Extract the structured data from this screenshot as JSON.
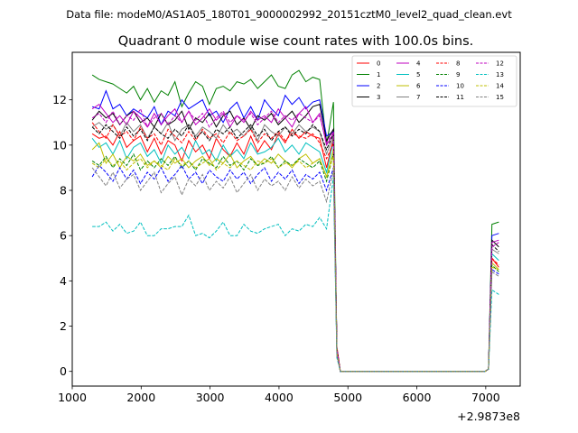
{
  "suptitle": "Data file: modeM0/AS1A05_180T01_9000002992_20151cztM0_level2_quad_clean.evt",
  "chart_data": {
    "type": "line",
    "title": "Quadrant 0 module wise count rates with 100.0s bins.",
    "xlabel": "",
    "ylabel": "",
    "x_offset_label": "+2.9873e8",
    "xlim": [
      1000,
      7500
    ],
    "ylim": [
      -0.65,
      14.1
    ],
    "xticks": [
      1000,
      2000,
      3000,
      4000,
      5000,
      6000,
      7000
    ],
    "yticks": [
      0,
      2,
      4,
      6,
      8,
      10,
      12
    ],
    "grid": false,
    "legend_position": "top-right",
    "legend_columns": 4,
    "x": [
      1290,
      1390,
      1490,
      1590,
      1690,
      1790,
      1890,
      1990,
      2090,
      2190,
      2290,
      2390,
      2490,
      2590,
      2690,
      2790,
      2890,
      2990,
      3090,
      3190,
      3290,
      3390,
      3490,
      3590,
      3690,
      3790,
      3890,
      3990,
      4090,
      4190,
      4290,
      4390,
      4490,
      4590,
      4690,
      4790,
      4840,
      4890,
      4990,
      5090,
      5190,
      5290,
      5390,
      5490,
      5590,
      5690,
      5790,
      5890,
      5990,
      6090,
      6190,
      6290,
      6390,
      6490,
      6590,
      6690,
      6790,
      6890,
      6990,
      7040,
      7090,
      7190
    ],
    "series": [
      {
        "name": "0",
        "color": "#ff0000",
        "dash": "solid",
        "values": [
          10.5,
          10.3,
          10.4,
          10.0,
          10.6,
          9.9,
          10.2,
          10.4,
          9.7,
          10.3,
          9.6,
          10.2,
          10.0,
          9.3,
          10.2,
          9.7,
          10.0,
          9.4,
          10.3,
          9.8,
          9.5,
          10.1,
          9.6,
          10.4,
          9.7,
          10.2,
          9.8,
          10.5,
          10.1,
          10.7,
          10.3,
          10.6,
          10.4,
          10.3,
          9.0,
          10.3,
          1.1,
          0.0,
          0.0,
          0.0,
          0.0,
          0.0,
          0.0,
          0.0,
          0.0,
          0.0,
          0.0,
          0.0,
          0.0,
          0.0,
          0.0,
          0.0,
          0.0,
          0.0,
          0.0,
          0.0,
          0.0,
          0.0,
          0.0,
          0.1,
          5.0,
          4.6
        ]
      },
      {
        "name": "1",
        "color": "#008000",
        "dash": "solid",
        "values": [
          13.1,
          12.9,
          12.8,
          12.7,
          12.5,
          12.3,
          12.6,
          12.0,
          12.5,
          11.9,
          12.4,
          12.2,
          12.8,
          11.7,
          12.3,
          12.8,
          12.6,
          11.8,
          12.5,
          12.6,
          12.4,
          12.8,
          12.7,
          12.9,
          12.5,
          12.8,
          13.1,
          12.6,
          12.5,
          13.1,
          13.3,
          12.8,
          13.0,
          12.9,
          10.0,
          11.9,
          1.0,
          0.0,
          0.0,
          0.0,
          0.0,
          0.0,
          0.0,
          0.0,
          0.0,
          0.0,
          0.0,
          0.0,
          0.0,
          0.0,
          0.0,
          0.0,
          0.0,
          0.0,
          0.0,
          0.0,
          0.0,
          0.0,
          0.0,
          0.1,
          6.5,
          6.6
        ]
      },
      {
        "name": "2",
        "color": "#0000ff",
        "dash": "solid",
        "values": [
          11.7,
          11.6,
          12.4,
          11.6,
          11.8,
          11.3,
          11.6,
          11.4,
          11.2,
          11.7,
          10.9,
          11.5,
          11.3,
          12.0,
          11.6,
          11.8,
          12.0,
          11.3,
          11.5,
          11.0,
          11.6,
          11.9,
          11.2,
          11.7,
          11.1,
          12.0,
          11.6,
          11.3,
          12.2,
          11.8,
          12.1,
          11.6,
          11.9,
          12.0,
          10.4,
          10.6,
          0.9,
          0.0,
          0.0,
          0.0,
          0.0,
          0.0,
          0.0,
          0.0,
          0.0,
          0.0,
          0.0,
          0.0,
          0.0,
          0.0,
          0.0,
          0.0,
          0.0,
          0.0,
          0.0,
          0.0,
          0.0,
          0.0,
          0.0,
          0.1,
          6.0,
          6.1
        ]
      },
      {
        "name": "3",
        "color": "#000000",
        "dash": "solid",
        "values": [
          11.1,
          11.5,
          11.2,
          11.4,
          10.9,
          11.3,
          11.5,
          11.0,
          11.2,
          10.8,
          11.4,
          10.9,
          11.1,
          11.5,
          10.7,
          11.2,
          11.0,
          11.4,
          10.8,
          11.3,
          11.5,
          10.9,
          11.2,
          10.7,
          11.3,
          11.1,
          11.4,
          10.9,
          11.2,
          11.5,
          11.0,
          11.3,
          11.7,
          11.8,
          10.2,
          10.7,
          1.0,
          0.0,
          0.0,
          0.0,
          0.0,
          0.0,
          0.0,
          0.0,
          0.0,
          0.0,
          0.0,
          0.0,
          0.0,
          0.0,
          0.0,
          0.0,
          0.0,
          0.0,
          0.0,
          0.0,
          0.0,
          0.0,
          0.0,
          0.1,
          5.8,
          5.5
        ]
      },
      {
        "name": "4",
        "color": "#bf00bf",
        "dash": "solid",
        "values": [
          11.6,
          11.8,
          11.4,
          11.0,
          11.3,
          10.9,
          11.5,
          11.2,
          10.8,
          11.4,
          10.9,
          11.3,
          11.6,
          11.0,
          11.5,
          10.9,
          11.2,
          11.6,
          11.1,
          11.4,
          10.8,
          11.3,
          11.0,
          11.5,
          11.1,
          11.3,
          11.0,
          11.6,
          11.2,
          10.8,
          11.4,
          11.7,
          11.0,
          11.4,
          10.0,
          10.5,
          1.0,
          0.0,
          0.0,
          0.0,
          0.0,
          0.0,
          0.0,
          0.0,
          0.0,
          0.0,
          0.0,
          0.0,
          0.0,
          0.0,
          0.0,
          0.0,
          0.0,
          0.0,
          0.0,
          0.0,
          0.0,
          0.0,
          0.0,
          0.1,
          5.7,
          5.8
        ]
      },
      {
        "name": "5",
        "color": "#00bfbf",
        "dash": "solid",
        "values": [
          10.3,
          9.9,
          10.1,
          9.6,
          10.2,
          9.4,
          9.9,
          10.1,
          9.5,
          9.8,
          9.2,
          10.0,
          9.6,
          9.9,
          9.4,
          10.2,
          9.6,
          9.8,
          9.3,
          10.0,
          9.5,
          9.8,
          9.4,
          10.1,
          9.6,
          9.7,
          9.9,
          10.3,
          9.7,
          10.0,
          9.6,
          10.1,
          9.9,
          9.7,
          8.8,
          10.2,
          0.9,
          0.0,
          0.0,
          0.0,
          0.0,
          0.0,
          0.0,
          0.0,
          0.0,
          0.0,
          0.0,
          0.0,
          0.0,
          0.0,
          0.0,
          0.0,
          0.0,
          0.0,
          0.0,
          0.0,
          0.0,
          0.0,
          0.0,
          0.1,
          5.2,
          4.9
        ]
      },
      {
        "name": "6",
        "color": "#bfbf00",
        "dash": "solid",
        "values": [
          9.8,
          10.1,
          9.2,
          9.6,
          9.0,
          9.5,
          9.3,
          9.6,
          9.1,
          9.3,
          9.0,
          9.5,
          9.2,
          9.4,
          9.0,
          9.3,
          9.5,
          9.1,
          9.4,
          9.2,
          9.6,
          9.0,
          9.3,
          9.5,
          9.1,
          9.4,
          9.2,
          9.6,
          9.3,
          9.0,
          9.4,
          9.6,
          9.2,
          9.4,
          8.6,
          9.8,
          0.8,
          0.0,
          0.0,
          0.0,
          0.0,
          0.0,
          0.0,
          0.0,
          0.0,
          0.0,
          0.0,
          0.0,
          0.0,
          0.0,
          0.0,
          0.0,
          0.0,
          0.0,
          0.0,
          0.0,
          0.0,
          0.0,
          0.0,
          0.1,
          4.8,
          4.5
        ]
      },
      {
        "name": "7",
        "color": "#808080",
        "dash": "solid",
        "values": [
          10.8,
          11.0,
          10.7,
          10.9,
          10.4,
          11.0,
          10.6,
          10.9,
          10.3,
          10.8,
          10.5,
          11.0,
          10.2,
          10.7,
          10.9,
          10.4,
          10.8,
          10.6,
          10.3,
          10.9,
          10.5,
          10.7,
          10.4,
          10.8,
          10.2,
          10.9,
          10.6,
          10.4,
          10.8,
          10.5,
          10.9,
          10.6,
          10.8,
          10.6,
          9.6,
          10.4,
          1.0,
          0.0,
          0.0,
          0.0,
          0.0,
          0.0,
          0.0,
          0.0,
          0.0,
          0.0,
          0.0,
          0.0,
          0.0,
          0.0,
          0.0,
          0.0,
          0.0,
          0.0,
          0.0,
          0.0,
          0.0,
          0.0,
          0.0,
          0.1,
          5.4,
          5.2
        ]
      },
      {
        "name": "8",
        "color": "#ff0000",
        "dash": "dashed",
        "values": [
          11.0,
          10.6,
          10.3,
          10.9,
          10.4,
          10.6,
          10.2,
          10.8,
          10.3,
          10.5,
          10.0,
          10.7,
          10.4,
          10.1,
          10.6,
          10.2,
          10.7,
          10.3,
          10.5,
          10.1,
          10.6,
          10.2,
          10.4,
          10.7,
          10.1,
          10.5,
          10.3,
          10.6,
          10.2,
          10.5,
          10.4,
          10.3,
          10.5,
          10.1,
          9.4,
          10.1,
          1.0,
          0.0,
          0.0,
          0.0,
          0.0,
          0.0,
          0.0,
          0.0,
          0.0,
          0.0,
          0.0,
          0.0,
          0.0,
          0.0,
          0.0,
          0.0,
          0.0,
          0.0,
          0.0,
          0.0,
          0.0,
          0.0,
          0.0,
          0.1,
          5.0,
          4.7
        ]
      },
      {
        "name": "9",
        "color": "#008000",
        "dash": "dashed",
        "values": [
          9.3,
          9.1,
          9.5,
          9.0,
          9.4,
          9.1,
          9.6,
          8.9,
          9.3,
          9.0,
          9.4,
          9.1,
          9.5,
          9.0,
          9.3,
          8.9,
          9.4,
          9.2,
          9.0,
          9.5,
          9.1,
          9.3,
          8.9,
          9.4,
          9.1,
          9.2,
          9.5,
          9.0,
          9.3,
          9.1,
          9.4,
          9.2,
          9.0,
          9.3,
          8.4,
          9.6,
          0.8,
          0.0,
          0.0,
          0.0,
          0.0,
          0.0,
          0.0,
          0.0,
          0.0,
          0.0,
          0.0,
          0.0,
          0.0,
          0.0,
          0.0,
          0.0,
          0.0,
          0.0,
          0.0,
          0.0,
          0.0,
          0.0,
          0.0,
          0.1,
          4.7,
          4.4
        ]
      },
      {
        "name": "10",
        "color": "#0000ff",
        "dash": "dashed",
        "values": [
          8.6,
          9.1,
          8.8,
          8.4,
          9.0,
          8.5,
          8.9,
          8.3,
          8.8,
          8.5,
          9.0,
          8.4,
          8.7,
          9.1,
          8.5,
          8.8,
          8.3,
          8.9,
          8.6,
          8.4,
          8.9,
          8.5,
          8.8,
          8.3,
          8.7,
          9.0,
          8.4,
          8.8,
          8.5,
          8.9,
          8.3,
          8.7,
          8.5,
          8.8,
          8.0,
          9.0,
          0.8,
          0.0,
          0.0,
          0.0,
          0.0,
          0.0,
          0.0,
          0.0,
          0.0,
          0.0,
          0.0,
          0.0,
          0.0,
          0.0,
          0.0,
          0.0,
          0.0,
          0.0,
          0.0,
          0.0,
          0.0,
          0.0,
          0.0,
          0.1,
          4.5,
          4.3
        ]
      },
      {
        "name": "11",
        "color": "#000000",
        "dash": "dashed",
        "values": [
          10.8,
          10.5,
          10.9,
          10.6,
          10.3,
          10.8,
          10.4,
          10.7,
          10.2,
          10.8,
          10.5,
          10.3,
          10.7,
          10.4,
          10.9,
          10.3,
          10.6,
          10.2,
          10.7,
          10.5,
          10.8,
          10.3,
          10.6,
          10.9,
          10.4,
          10.7,
          10.2,
          10.6,
          10.8,
          10.4,
          10.7,
          10.5,
          10.9,
          10.6,
          9.8,
          10.5,
          1.0,
          0.0,
          0.0,
          0.0,
          0.0,
          0.0,
          0.0,
          0.0,
          0.0,
          0.0,
          0.0,
          0.0,
          0.0,
          0.0,
          0.0,
          0.0,
          0.0,
          0.0,
          0.0,
          0.0,
          0.0,
          0.0,
          0.0,
          0.1,
          5.6,
          5.3
        ]
      },
      {
        "name": "12",
        "color": "#bf00bf",
        "dash": "dashed",
        "values": [
          11.2,
          11.4,
          11.0,
          11.5,
          10.9,
          11.3,
          11.1,
          11.6,
          10.8,
          11.2,
          11.4,
          10.9,
          11.3,
          11.0,
          11.5,
          11.1,
          11.4,
          10.8,
          11.2,
          11.5,
          11.0,
          11.3,
          11.1,
          11.4,
          10.9,
          11.2,
          11.5,
          11.0,
          11.3,
          11.1,
          11.4,
          11.2,
          11.0,
          11.3,
          10.1,
          10.6,
          1.0,
          0.0,
          0.0,
          0.0,
          0.0,
          0.0,
          0.0,
          0.0,
          0.0,
          0.0,
          0.0,
          0.0,
          0.0,
          0.0,
          0.0,
          0.0,
          0.0,
          0.0,
          0.0,
          0.0,
          0.0,
          0.0,
          0.0,
          0.1,
          5.5,
          5.7
        ]
      },
      {
        "name": "13",
        "color": "#00bfbf",
        "dash": "dashed",
        "values": [
          6.4,
          6.4,
          6.6,
          6.2,
          6.5,
          6.1,
          6.2,
          6.6,
          6.0,
          6.0,
          6.3,
          6.3,
          6.4,
          6.4,
          6.9,
          6.0,
          6.1,
          5.9,
          6.2,
          6.6,
          6.0,
          6.0,
          6.5,
          6.2,
          6.1,
          6.3,
          6.4,
          6.5,
          6.0,
          6.3,
          6.2,
          6.5,
          6.4,
          6.8,
          6.3,
          8.6,
          0.6,
          0.0,
          0.0,
          0.0,
          0.0,
          0.0,
          0.0,
          0.0,
          0.0,
          0.0,
          0.0,
          0.0,
          0.0,
          0.0,
          0.0,
          0.0,
          0.0,
          0.0,
          0.0,
          0.0,
          0.0,
          0.0,
          0.0,
          0.1,
          3.6,
          3.4
        ]
      },
      {
        "name": "14",
        "color": "#bfbf00",
        "dash": "dashed",
        "values": [
          9.2,
          9.0,
          9.4,
          9.1,
          9.3,
          8.9,
          9.2,
          9.4,
          9.0,
          9.3,
          9.1,
          8.9,
          9.4,
          9.1,
          9.3,
          9.0,
          9.2,
          9.4,
          8.9,
          9.2,
          9.0,
          9.3,
          9.1,
          8.9,
          9.3,
          9.2,
          9.4,
          9.0,
          9.2,
          9.1,
          9.3,
          9.0,
          9.2,
          9.4,
          8.6,
          9.5,
          0.8,
          0.0,
          0.0,
          0.0,
          0.0,
          0.0,
          0.0,
          0.0,
          0.0,
          0.0,
          0.0,
          0.0,
          0.0,
          0.0,
          0.0,
          0.0,
          0.0,
          0.0,
          0.0,
          0.0,
          0.0,
          0.0,
          0.0,
          0.1,
          4.6,
          4.5
        ]
      },
      {
        "name": "15",
        "color": "#808080",
        "dash": "dashed",
        "values": [
          9.0,
          8.6,
          8.2,
          8.8,
          8.1,
          8.5,
          8.7,
          8.0,
          8.4,
          8.8,
          7.9,
          8.3,
          8.6,
          7.8,
          8.5,
          8.2,
          8.7,
          8.0,
          8.4,
          8.1,
          8.6,
          7.9,
          8.3,
          8.7,
          8.0,
          8.5,
          8.2,
          8.4,
          8.0,
          8.6,
          8.1,
          8.5,
          8.2,
          8.4,
          7.5,
          8.9,
          0.7,
          0.0,
          0.0,
          0.0,
          0.0,
          0.0,
          0.0,
          0.0,
          0.0,
          0.0,
          0.0,
          0.0,
          0.0,
          0.0,
          0.0,
          0.0,
          0.0,
          0.0,
          0.0,
          0.0,
          0.0,
          0.0,
          0.0,
          0.1,
          4.4,
          4.2
        ]
      }
    ]
  }
}
